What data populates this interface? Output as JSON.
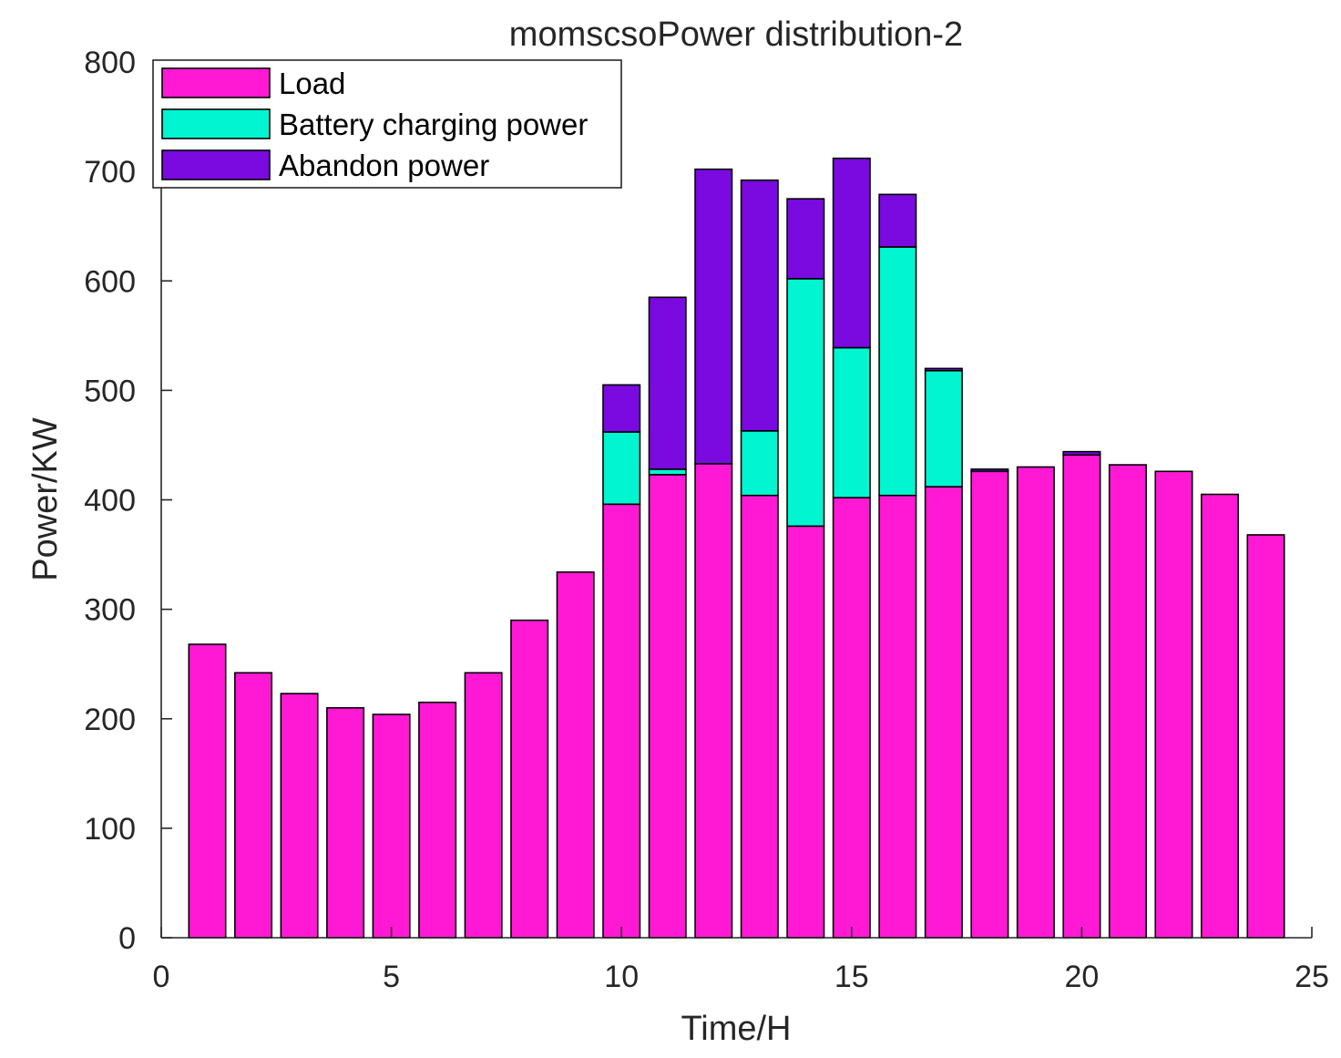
{
  "chart_data": {
    "type": "bar",
    "stacked": true,
    "title": "momscsoPower distribution-2",
    "xlabel": "Time/H",
    "ylabel": "Power/KW",
    "xlim": [
      0,
      25
    ],
    "ylim": [
      0,
      800
    ],
    "xticks": [
      0,
      5,
      10,
      15,
      20,
      25
    ],
    "yticks": [
      0,
      100,
      200,
      300,
      400,
      500,
      600,
      700,
      800
    ],
    "legend_position": "top-left",
    "x": [
      1,
      2,
      3,
      4,
      5,
      6,
      7,
      8,
      9,
      10,
      11,
      12,
      13,
      14,
      15,
      16,
      17,
      18,
      19,
      20,
      21,
      22,
      23,
      24
    ],
    "series": [
      {
        "name": "Load",
        "color": "#ff19d5",
        "values": [
          268,
          242,
          223,
          210,
          204,
          215,
          242,
          290,
          334,
          396,
          423,
          433,
          404,
          376,
          402,
          404,
          412,
          426,
          430,
          441,
          432,
          426,
          405,
          368
        ]
      },
      {
        "name": "Battery charging power",
        "color": "#00f5d0",
        "values": [
          0,
          0,
          0,
          0,
          0,
          0,
          0,
          0,
          0,
          66,
          5,
          0,
          59,
          226,
          137,
          227,
          106,
          0,
          0,
          0,
          0,
          0,
          0,
          0
        ]
      },
      {
        "name": "Abandon power",
        "color": "#7a0ae0",
        "values": [
          0,
          0,
          0,
          0,
          0,
          0,
          0,
          0,
          0,
          43,
          157,
          269,
          229,
          73,
          173,
          48,
          2,
          2,
          0,
          3,
          0,
          0,
          0,
          0
        ]
      }
    ]
  }
}
